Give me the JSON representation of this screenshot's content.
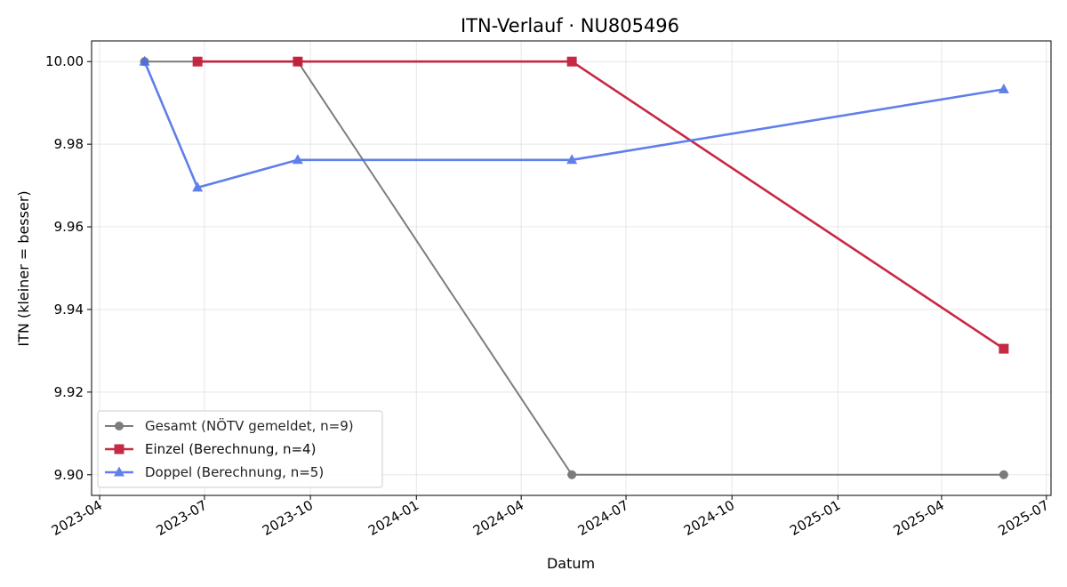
{
  "chart_data": {
    "type": "line",
    "title": "ITN-Verlauf · NU805496",
    "xlabel": "Datum",
    "ylabel": "ITN  (kleiner = besser)",
    "x_ticks": [
      "2023-04",
      "2023-07",
      "2023-10",
      "2024-01",
      "2024-04",
      "2024-07",
      "2024-10",
      "2025-01",
      "2025-04",
      "2025-07"
    ],
    "xlim": [
      "2023-03-25",
      "2025-07-05"
    ],
    "y_ticks": [
      "9.90",
      "9.92",
      "9.94",
      "9.96",
      "9.98",
      "10.00"
    ],
    "ylim": [
      9.895,
      10.005
    ],
    "grid": true,
    "legend_position": "lower-left",
    "series": [
      {
        "name": "Gesamt (NÖTV gemeldet, n=9)",
        "color": "#666666",
        "marker": "circle",
        "x": [
          "2023-05-10",
          "2023-09-20",
          "2024-05-15",
          "2025-05-25"
        ],
        "y": [
          10.0,
          10.0,
          9.9,
          9.9
        ]
      },
      {
        "name": "Einzel (Berechnung, n=4)",
        "color": "#c41e3a",
        "marker": "square",
        "x": [
          "2023-06-25",
          "2023-09-20",
          "2024-05-15",
          "2025-05-25"
        ],
        "y": [
          10.0,
          10.0,
          10.0,
          9.9305
        ]
      },
      {
        "name": "Doppel (Berechnung, n=5)",
        "color": "#4a6ee8",
        "marker": "triangle",
        "x": [
          "2023-05-10",
          "2023-06-25",
          "2023-09-20",
          "2024-05-15",
          "2025-05-25"
        ],
        "y": [
          10.0,
          9.9695,
          9.9762,
          9.9762,
          9.9933
        ]
      }
    ]
  }
}
